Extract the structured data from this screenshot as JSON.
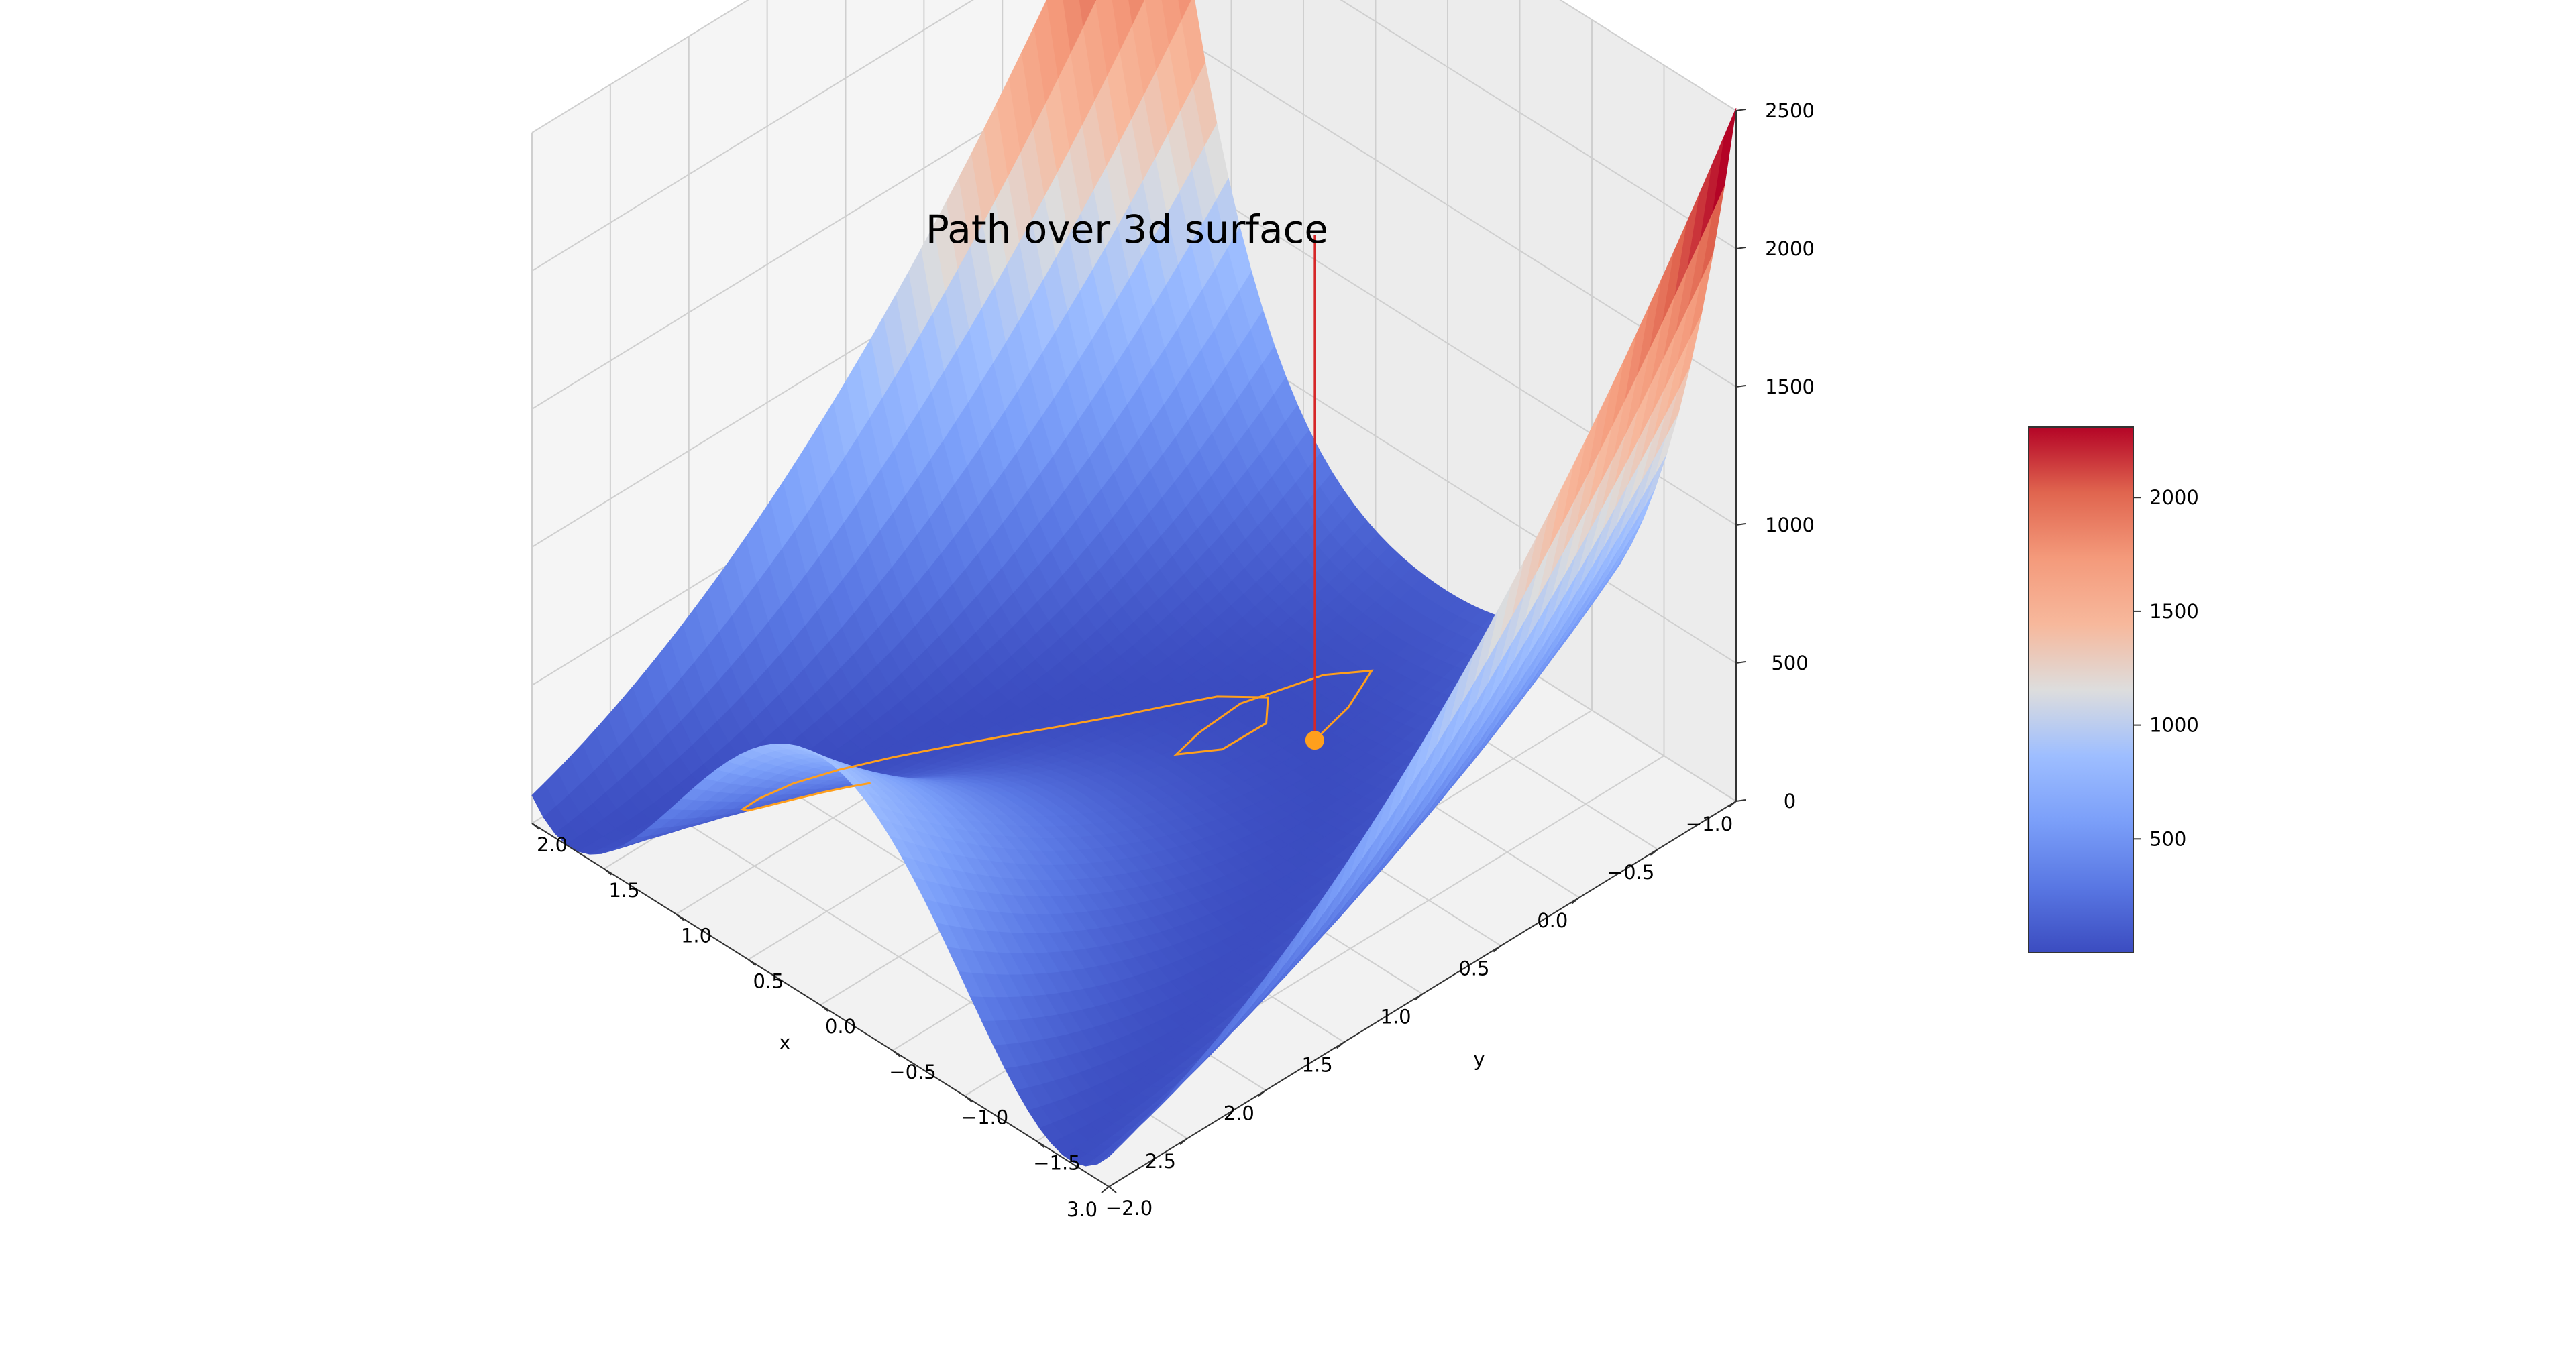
{
  "chart_data": {
    "type": "surface3d",
    "title": "Path over 3d surface",
    "xlabel": "x",
    "ylabel": "y",
    "zlabel": "",
    "xlim": [
      -2.0,
      2.0
    ],
    "ylim": [
      -1.0,
      3.0
    ],
    "zlim": [
      0,
      2500
    ],
    "x_ticks": [
      "−2.0",
      "−1.5",
      "−1.0",
      "−0.5",
      "0.0",
      "0.5",
      "1.0",
      "1.5",
      "2.0"
    ],
    "y_ticks": [
      "−1.0",
      "−0.5",
      "0.0",
      "0.5",
      "1.0",
      "1.5",
      "2.0",
      "2.5",
      "3.0"
    ],
    "z_ticks": [
      "0",
      "500",
      "1000",
      "1500",
      "2000",
      "2500"
    ],
    "colormap": "coolwarm",
    "surface_function": "(1 - x)^2 + 100*(y - x^2)^2",
    "colorbar": {
      "range": [
        0,
        2310
      ],
      "ticks": [
        "500",
        "1000",
        "1500",
        "2000"
      ],
      "tick_values": [
        500,
        1000,
        1500,
        2000
      ]
    },
    "path": {
      "color": "#ff9f1c",
      "points": [
        [
          0.74,
          2.0
        ],
        [
          0.83,
          2.06
        ],
        [
          0.93,
          2.14
        ],
        [
          1.03,
          2.22
        ],
        [
          1.13,
          2.3
        ],
        [
          1.22,
          2.34
        ],
        [
          1.3,
          2.3
        ],
        [
          1.34,
          2.16
        ],
        [
          1.32,
          1.96
        ],
        [
          1.24,
          1.74
        ],
        [
          1.12,
          1.5
        ],
        [
          0.98,
          1.26
        ],
        [
          0.84,
          1.02
        ],
        [
          0.7,
          0.78
        ],
        [
          0.58,
          0.56
        ],
        [
          0.48,
          0.36
        ],
        [
          0.36,
          0.14
        ],
        [
          0.18,
          -0.02
        ],
        [
          0.04,
          0.12
        ],
        [
          0.02,
          0.42
        ],
        [
          0.12,
          0.62
        ],
        [
          0.2,
          0.4
        ],
        [
          0.24,
          0.1
        ],
        [
          0.1,
          -0.3
        ],
        [
          -0.06,
          -0.46
        ],
        [
          -0.16,
          -0.22
        ],
        [
          -0.22,
          0.05
        ]
      ],
      "end_marker": [
        -0.22,
        0.05
      ],
      "vertical_line": {
        "x": -0.22,
        "y": 0.05,
        "color": "#d62728",
        "z_top": 1830
      }
    }
  }
}
